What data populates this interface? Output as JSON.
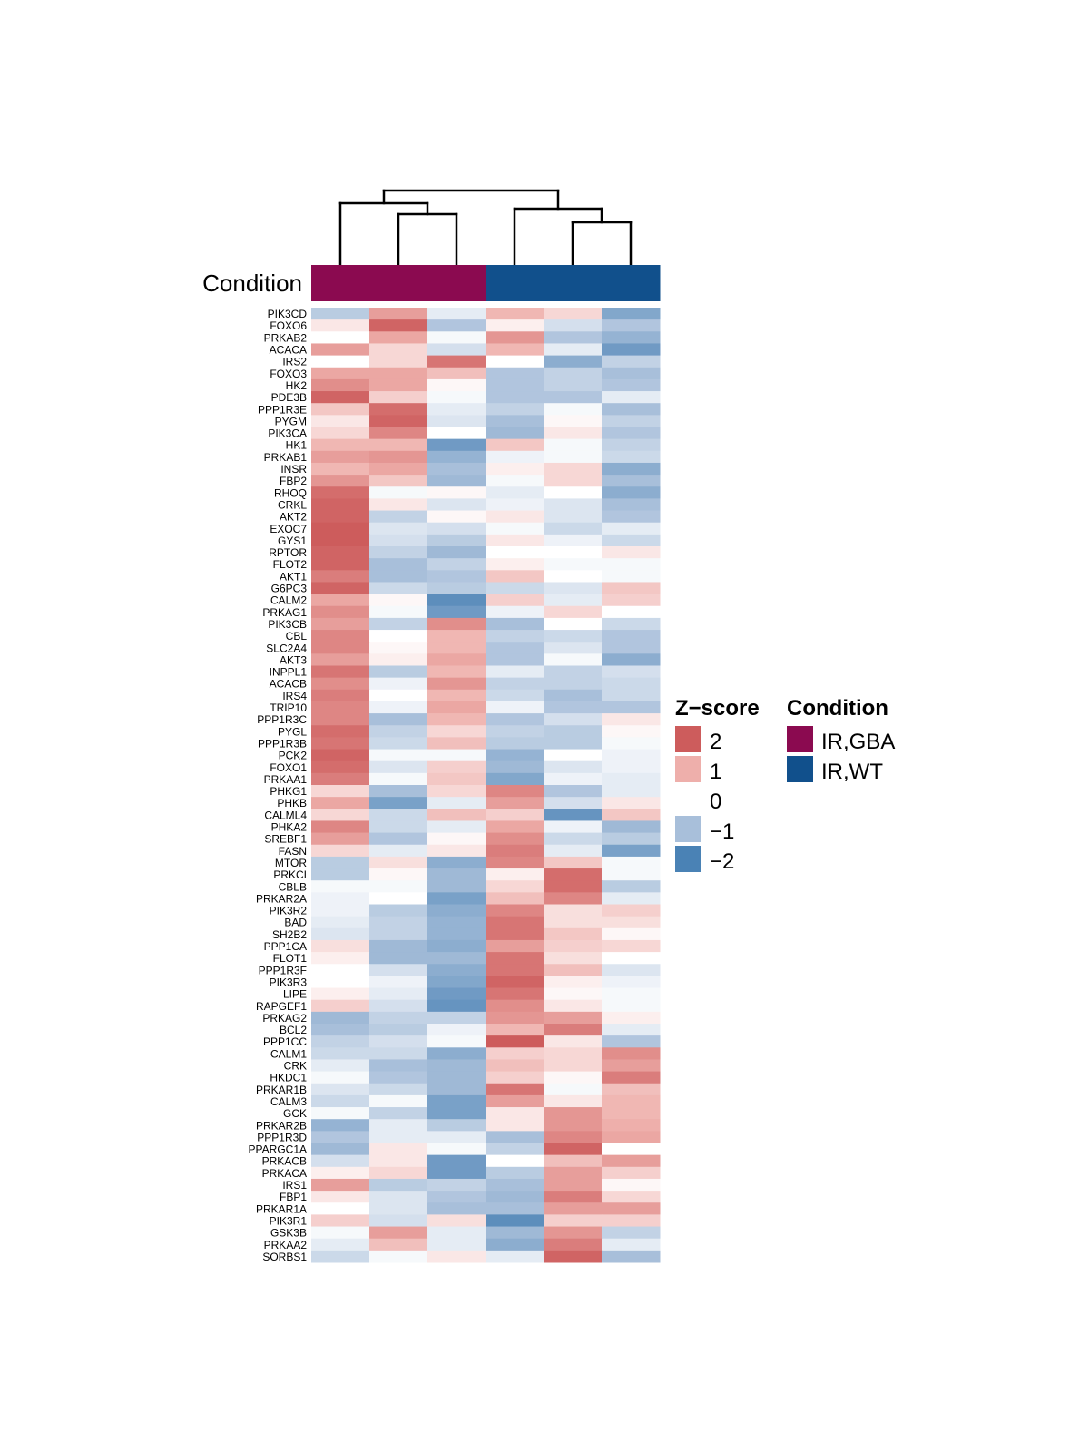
{
  "chart_data": {
    "type": "heatmap",
    "title": "",
    "annotation_label": "Condition",
    "samples": [
      {
        "condition": "IR,GBA"
      },
      {
        "condition": "IR,GBA"
      },
      {
        "condition": "IR,GBA"
      },
      {
        "condition": "IR,WT"
      },
      {
        "condition": "IR,WT"
      },
      {
        "condition": "IR,WT"
      }
    ],
    "genes": [
      "PIK3CD",
      "FOXO6",
      "PRKAB2",
      "ACACA",
      "IRS2",
      "FOXO3",
      "HK2",
      "PDE3B",
      "PPP1R3E",
      "PYGM",
      "PIK3CA",
      "HK1",
      "PRKAB1",
      "INSR",
      "FBP2",
      "RHOQ",
      "CRKL",
      "AKT2",
      "EXOC7",
      "GYS1",
      "RPTOR",
      "FLOT2",
      "AKT1",
      "G6PC3",
      "CALM2",
      "PRKAG1",
      "PIK3CB",
      "CBL",
      "SLC2A4",
      "AKT3",
      "INPPL1",
      "ACACB",
      "IRS4",
      "TRIP10",
      "PPP1R3C",
      "PYGL",
      "PPP1R3B",
      "PCK2",
      "FOXO1",
      "PRKAA1",
      "PHKG1",
      "PHKB",
      "CALML4",
      "PHKA2",
      "SREBF1",
      "FASN",
      "MTOR",
      "PRKCI",
      "CBLB",
      "PRKAR2A",
      "PIK3R2",
      "BAD",
      "SH2B2",
      "PPP1CA",
      "FLOT1",
      "PPP1R3F",
      "PIK3R3",
      "LIPE",
      "RAPGEF1",
      "PRKAG2",
      "BCL2",
      "PPP1CC",
      "CALM1",
      "CRK",
      "HKDC1",
      "PRKAR1B",
      "CALM3",
      "GCK",
      "PRKAR2B",
      "PPP1R3D",
      "PPARGC1A",
      "PRKACB",
      "PRKACA",
      "IRS1",
      "FBP1",
      "PRKAR1A",
      "PIK3R1",
      "GSK3B",
      "PRKAA2",
      "SORBS1"
    ],
    "values": [
      [
        -0.8,
        1.2,
        -0.3,
        0.9,
        0.5,
        -1.4
      ],
      [
        0.3,
        1.9,
        -0.9,
        0.2,
        -0.5,
        -0.9
      ],
      [
        0.0,
        1.1,
        -0.1,
        1.3,
        -0.9,
        -1.2
      ],
      [
        1.2,
        0.5,
        -0.5,
        0.9,
        -0.3,
        -1.6
      ],
      [
        0.0,
        0.5,
        1.7,
        0.0,
        -1.3,
        -0.7
      ],
      [
        1.1,
        1.1,
        0.8,
        -0.9,
        -0.7,
        -1.0
      ],
      [
        1.4,
        1.1,
        0.1,
        -0.9,
        -0.7,
        -0.9
      ],
      [
        1.9,
        0.6,
        -0.1,
        -0.9,
        -0.9,
        -0.3
      ],
      [
        0.7,
        1.8,
        -0.3,
        -0.7,
        -0.1,
        -1.0
      ],
      [
        0.3,
        1.9,
        -0.4,
        -1.0,
        0.1,
        -0.7
      ],
      [
        0.5,
        1.5,
        0.0,
        -1.1,
        0.3,
        -0.9
      ],
      [
        0.9,
        0.9,
        -1.6,
        0.7,
        -0.1,
        -0.7
      ],
      [
        1.2,
        1.3,
        -1.2,
        -0.2,
        -0.1,
        -0.6
      ],
      [
        0.9,
        1.1,
        -1.0,
        0.2,
        0.5,
        -1.3
      ],
      [
        1.3,
        0.7,
        -1.1,
        -0.1,
        0.5,
        -1.0
      ],
      [
        1.8,
        -0.1,
        0.1,
        -0.3,
        0.0,
        -1.3
      ],
      [
        1.9,
        0.3,
        -0.4,
        -0.2,
        -0.4,
        -1.0
      ],
      [
        1.9,
        -0.7,
        0.1,
        0.3,
        -0.4,
        -0.9
      ],
      [
        2.1,
        -0.4,
        -0.5,
        -0.1,
        -0.6,
        -0.3
      ],
      [
        2.0,
        -0.5,
        -0.8,
        0.3,
        -0.2,
        -0.6
      ],
      [
        1.9,
        -0.7,
        -1.1,
        0.0,
        0.0,
        0.3
      ],
      [
        1.9,
        -1.0,
        -0.7,
        0.2,
        -0.1,
        -0.1
      ],
      [
        1.6,
        -1.0,
        -0.9,
        0.7,
        0.0,
        -0.1
      ],
      [
        1.9,
        -0.6,
        -0.8,
        -0.6,
        -0.4,
        0.7
      ],
      [
        1.1,
        0.1,
        -1.8,
        0.6,
        -0.3,
        0.6
      ],
      [
        1.4,
        -0.1,
        -1.6,
        -0.2,
        0.5,
        0.0
      ],
      [
        1.2,
        -0.7,
        1.4,
        -1.0,
        0.0,
        -0.6
      ],
      [
        1.5,
        0.0,
        0.9,
        -0.7,
        -0.6,
        -0.9
      ],
      [
        1.5,
        0.1,
        0.9,
        -0.9,
        -0.4,
        -0.9
      ],
      [
        1.2,
        0.2,
        1.1,
        -0.9,
        -0.1,
        -1.3
      ],
      [
        1.7,
        -0.8,
        0.9,
        -0.3,
        -0.7,
        -0.5
      ],
      [
        1.4,
        -0.2,
        1.3,
        -0.7,
        -0.7,
        -0.6
      ],
      [
        1.6,
        0.0,
        0.9,
        -0.6,
        -1.0,
        -0.6
      ],
      [
        1.5,
        -0.2,
        1.1,
        -0.2,
        -0.9,
        -0.9
      ],
      [
        1.5,
        -1.0,
        0.9,
        -0.9,
        -0.5,
        0.3
      ],
      [
        1.8,
        -0.7,
        0.5,
        -0.7,
        -0.8,
        0.1
      ],
      [
        1.7,
        -0.6,
        0.8,
        -0.8,
        -0.8,
        -0.1
      ],
      [
        1.9,
        -0.1,
        -0.1,
        -1.2,
        0.0,
        -0.2
      ],
      [
        1.8,
        -0.4,
        0.6,
        -1.1,
        -0.4,
        -0.2
      ],
      [
        1.6,
        -0.1,
        0.7,
        -1.4,
        -0.2,
        -0.3
      ],
      [
        0.5,
        -1.0,
        0.5,
        1.5,
        -0.9,
        -0.3
      ],
      [
        1.1,
        -1.5,
        -0.3,
        1.2,
        -0.5,
        0.3
      ],
      [
        0.5,
        -0.6,
        0.8,
        0.6,
        -1.7,
        0.7
      ],
      [
        1.5,
        -0.6,
        -0.3,
        1.1,
        -0.2,
        -1.1
      ],
      [
        1.2,
        -0.9,
        0.1,
        1.4,
        -0.6,
        -0.8
      ],
      [
        0.5,
        -0.3,
        0.3,
        1.6,
        -0.3,
        -1.5
      ],
      [
        -0.8,
        0.4,
        -1.3,
        1.5,
        0.7,
        -0.1
      ],
      [
        -0.8,
        0.1,
        -1.1,
        0.2,
        1.8,
        -0.1
      ],
      [
        -0.1,
        -0.1,
        -1.1,
        0.5,
        1.8,
        -0.8
      ],
      [
        -0.2,
        0.0,
        -1.5,
        0.8,
        1.5,
        -0.3
      ],
      [
        -0.2,
        -0.8,
        -1.3,
        1.5,
        0.4,
        0.6
      ],
      [
        -0.3,
        -0.7,
        -1.2,
        1.7,
        0.4,
        0.4
      ],
      [
        -0.4,
        -0.7,
        -1.2,
        1.7,
        0.7,
        0.1
      ],
      [
        0.4,
        -1.1,
        -1.3,
        1.2,
        0.6,
        0.5
      ],
      [
        0.2,
        -1.1,
        -1.1,
        1.7,
        0.4,
        0.0
      ],
      [
        0.0,
        -0.5,
        -1.3,
        1.7,
        0.8,
        -0.4
      ],
      [
        0.0,
        -0.2,
        -1.4,
        1.9,
        0.2,
        -0.2
      ],
      [
        0.2,
        -0.3,
        -1.6,
        1.7,
        0.1,
        -0.1
      ],
      [
        0.6,
        -0.5,
        -1.7,
        1.4,
        0.3,
        -0.1
      ],
      [
        -1.1,
        -0.7,
        -0.7,
        1.3,
        1.2,
        0.2
      ],
      [
        -1.0,
        -0.8,
        -0.2,
        0.9,
        1.6,
        -0.3
      ],
      [
        -0.7,
        -0.5,
        -0.1,
        2.0,
        0.3,
        -0.9
      ],
      [
        -0.6,
        -0.6,
        -1.3,
        0.6,
        0.5,
        1.4
      ],
      [
        -0.3,
        -1.0,
        -1.1,
        0.8,
        0.5,
        1.2
      ],
      [
        -0.1,
        -0.9,
        -1.1,
        0.6,
        0.1,
        1.6
      ],
      [
        -0.4,
        -0.6,
        -1.1,
        1.7,
        -0.1,
        0.8
      ],
      [
        -0.6,
        -0.1,
        -1.5,
        1.2,
        0.3,
        0.9
      ],
      [
        -0.1,
        -0.7,
        -1.5,
        0.3,
        1.3,
        0.9
      ],
      [
        -1.2,
        -0.3,
        -0.8,
        0.3,
        1.3,
        1.0
      ],
      [
        -0.9,
        -0.3,
        -0.3,
        -1.0,
        1.5,
        1.1
      ],
      [
        -1.1,
        0.3,
        -0.1,
        -0.7,
        1.9,
        0.0
      ],
      [
        -0.5,
        0.3,
        -1.6,
        0.0,
        0.8,
        1.2
      ],
      [
        0.2,
        0.5,
        -1.6,
        -0.8,
        1.2,
        0.6
      ],
      [
        1.2,
        -0.8,
        -0.7,
        -1.0,
        1.2,
        0.1
      ],
      [
        0.3,
        -0.4,
        -0.9,
        -1.1,
        1.6,
        0.5
      ],
      [
        0.0,
        -0.4,
        -1.0,
        -1.0,
        1.2,
        1.2
      ],
      [
        0.6,
        -0.5,
        0.4,
        -1.8,
        0.6,
        0.6
      ],
      [
        -0.1,
        1.2,
        -0.3,
        -1.1,
        1.3,
        -0.7
      ],
      [
        -0.3,
        0.8,
        -0.3,
        -1.3,
        1.6,
        -0.3
      ],
      [
        -0.6,
        -0.1,
        0.3,
        -0.3,
        1.9,
        -1.0
      ]
    ],
    "color_scale": {
      "min": -2,
      "max": 2,
      "colors": [
        "#4A82B5",
        "#A8BFDA",
        "#FFFFFF",
        "#EEAFAB",
        "#CD5C5C"
      ]
    },
    "legends": [
      {
        "title": "Z−score",
        "entries": [
          {
            "label": "2",
            "color": "#CD5C5C"
          },
          {
            "label": "1",
            "color": "#EEAFAB"
          },
          {
            "label": "0",
            "color": "#FFFFFF"
          },
          {
            "label": "−1",
            "color": "#A8BFDA"
          },
          {
            "label": "−2",
            "color": "#4A82B5"
          }
        ]
      },
      {
        "title": "Condition",
        "entries": [
          {
            "label": "IR,GBA",
            "color": "#8B0A50"
          },
          {
            "label": "IR,WT",
            "color": "#11508C"
          }
        ]
      }
    ],
    "column_dendrogram": true,
    "legend_position": "right"
  }
}
